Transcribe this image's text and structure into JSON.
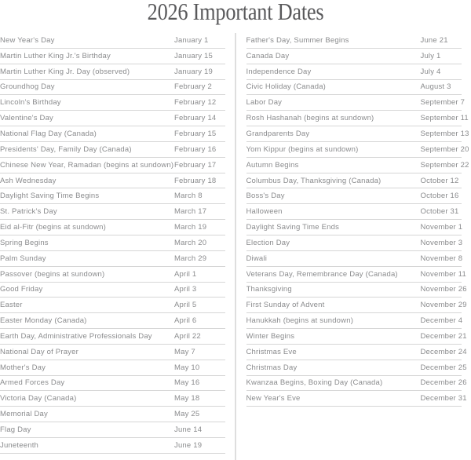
{
  "page": {
    "title": "2026 Important Dates"
  },
  "theme": {
    "background": "#ffffff",
    "title_color": "#59595b",
    "text_color": "#8a8b8d",
    "divider_color": "#d6d6d6",
    "separator_color": "#dedede"
  },
  "columns": {
    "left": {
      "rows": [
        {
          "label": "New Year's Day",
          "date": "January 1"
        },
        {
          "label": "Martin Luther King Jr.'s Birthday",
          "date": "January 15"
        },
        {
          "label": "Martin Luther King Jr. Day (observed)",
          "date": "January 19"
        },
        {
          "label": "Groundhog Day",
          "date": "February 2"
        },
        {
          "label": "Lincoln's Birthday",
          "date": "February 12"
        },
        {
          "label": "Valentine's Day",
          "date": "February 14"
        },
        {
          "label": "National Flag Day (Canada)",
          "date": "February 15"
        },
        {
          "label": "Presidents' Day, Family Day (Canada)",
          "date": "February 16"
        },
        {
          "label": "Chinese New Year, Ramadan (begins at sundown)",
          "date": "February 17"
        },
        {
          "label": "Ash Wednesday",
          "date": "February 18"
        },
        {
          "label": "Daylight Saving Time Begins",
          "date": "March 8"
        },
        {
          "label": "St. Patrick's Day",
          "date": "March 17"
        },
        {
          "label": "Eid al-Fitr (begins at sundown)",
          "date": "March 19"
        },
        {
          "label": "Spring Begins",
          "date": "March 20"
        },
        {
          "label": "Palm Sunday",
          "date": "March 29"
        },
        {
          "label": "Passover (begins at sundown)",
          "date": "April 1"
        },
        {
          "label": "Good Friday",
          "date": "April 3"
        },
        {
          "label": "Easter",
          "date": "April 5"
        },
        {
          "label": "Easter Monday (Canada)",
          "date": "April 6"
        },
        {
          "label": "Earth Day, Administrative Professionals Day",
          "date": "April 22"
        },
        {
          "label": "National Day of Prayer",
          "date": "May 7"
        },
        {
          "label": "Mother's Day",
          "date": "May 10"
        },
        {
          "label": "Armed Forces Day",
          "date": "May 16"
        },
        {
          "label": "Victoria Day (Canada)",
          "date": "May 18"
        },
        {
          "label": "Memorial Day",
          "date": "May 25"
        },
        {
          "label": "Flag Day",
          "date": "June 14"
        },
        {
          "label": "Juneteenth",
          "date": "June 19"
        }
      ]
    },
    "right": {
      "rows": [
        {
          "label": "Father's Day, Summer Begins",
          "date": "June 21"
        },
        {
          "label": "Canada Day",
          "date": "July 1"
        },
        {
          "label": "Independence Day",
          "date": "July 4"
        },
        {
          "label": "Civic Holiday (Canada)",
          "date": "August 3"
        },
        {
          "label": "Labor Day",
          "date": "September 7"
        },
        {
          "label": "Rosh Hashanah (begins at sundown)",
          "date": "September 11"
        },
        {
          "label": "Grandparents Day",
          "date": "September 13"
        },
        {
          "label": "Yom Kippur (begins at sundown)",
          "date": "September 20"
        },
        {
          "label": "Autumn Begins",
          "date": "September 22"
        },
        {
          "label": "Columbus Day, Thanksgiving (Canada)",
          "date": "October 12"
        },
        {
          "label": "Boss's Day",
          "date": "October 16"
        },
        {
          "label": "Halloween",
          "date": "October 31"
        },
        {
          "label": "Daylight Saving Time Ends",
          "date": "November 1"
        },
        {
          "label": "Election Day",
          "date": "November 3"
        },
        {
          "label": "Diwali",
          "date": "November 8"
        },
        {
          "label": "Veterans Day, Remembrance Day (Canada)",
          "date": "November 11"
        },
        {
          "label": "Thanksgiving",
          "date": "November 26"
        },
        {
          "label": "First Sunday of Advent",
          "date": "November 29"
        },
        {
          "label": "Hanukkah (begins at sundown)",
          "date": "December 4"
        },
        {
          "label": "Winter Begins",
          "date": "December 21"
        },
        {
          "label": "Christmas Eve",
          "date": "December 24"
        },
        {
          "label": "Christmas Day",
          "date": "December 25"
        },
        {
          "label": "Kwanzaa Begins, Boxing Day (Canada)",
          "date": "December 26"
        },
        {
          "label": "New Year's Eve",
          "date": "December 31"
        }
      ]
    }
  }
}
